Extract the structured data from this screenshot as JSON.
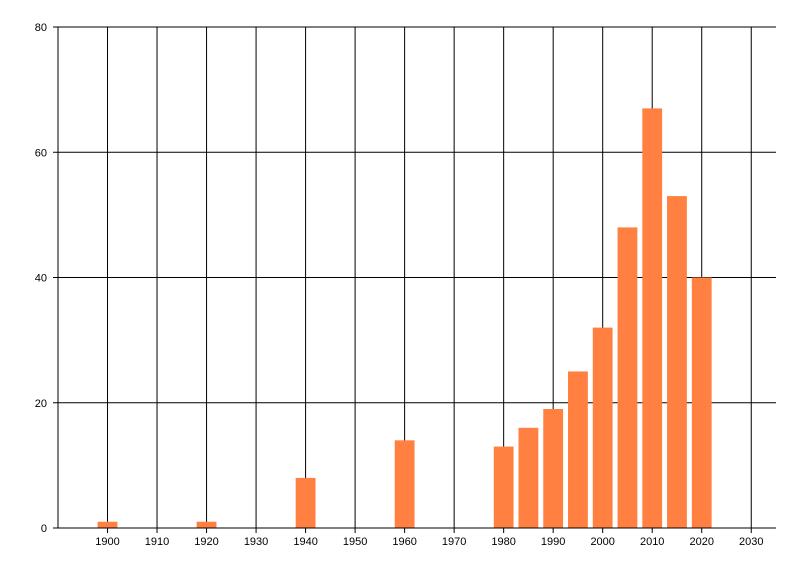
{
  "chart_data": {
    "type": "bar",
    "title": "",
    "xlabel": "",
    "ylabel": "",
    "x": [
      1900,
      1920,
      1940,
      1960,
      1980,
      1985,
      1990,
      1995,
      2000,
      2005,
      2010,
      2015,
      2020
    ],
    "values": [
      1,
      1,
      8,
      14,
      13,
      16,
      19,
      25,
      32,
      48,
      67,
      53,
      40
    ],
    "bar_width_years": 4,
    "xlim": [
      1890,
      2035
    ],
    "ylim": [
      0,
      80
    ],
    "xticks": [
      1900,
      1910,
      1920,
      1930,
      1940,
      1950,
      1960,
      1970,
      1980,
      1990,
      2000,
      2010,
      2020,
      2030
    ],
    "yticks": [
      0,
      20,
      40,
      60,
      80
    ],
    "grid": true,
    "legend": "none",
    "colors": {
      "bar": "#ff8040",
      "grid": "#000000",
      "axis": "#000000",
      "background": "#ffffff"
    }
  }
}
